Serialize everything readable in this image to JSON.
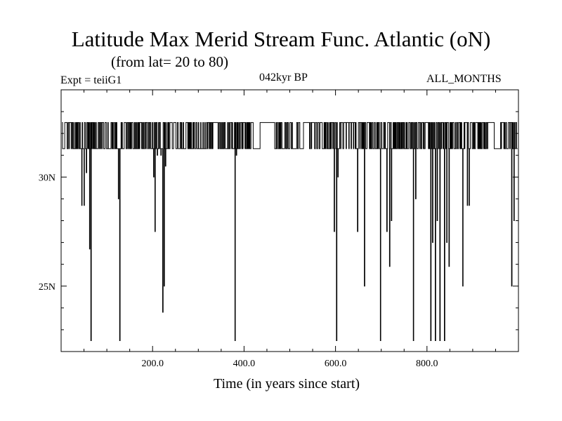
{
  "chart_data": {
    "type": "line",
    "title": "Latitude Max Merid Stream Func. Atlantic (oN)",
    "subtitle": "(from lat= 20 to 80)",
    "annotations": {
      "left": "Expt = teiiG1",
      "center": "042kyr BP",
      "right": "ALL_MONTHS"
    },
    "xlabel": "Time (in years since start)",
    "ylabel": "",
    "xlim": [
      0,
      1000
    ],
    "ylim": [
      22,
      34
    ],
    "x_ticks": [
      200,
      400,
      600,
      800
    ],
    "x_tick_labels": [
      "200.0",
      "400.0",
      "600.0",
      "800.0"
    ],
    "y_ticks": [
      25,
      30
    ],
    "y_tick_labels": [
      "25N",
      "30N"
    ],
    "grid": false,
    "legend": "none",
    "line_color": "#000000",
    "series": [
      {
        "levels": [
          32.5,
          31.3
        ],
        "baseline_range": [
          2,
          998
        ],
        "dips": [
          {
            "x": 45,
            "y": 28.7
          },
          {
            "x": 50,
            "y": 28.7
          },
          {
            "x": 55,
            "y": 30.2
          },
          {
            "x": 62,
            "y": 26.7
          },
          {
            "x": 65,
            "y": 22.5
          },
          {
            "x": 125,
            "y": 29.0
          },
          {
            "x": 128,
            "y": 22.5
          },
          {
            "x": 202,
            "y": 30.0
          },
          {
            "x": 205,
            "y": 27.5
          },
          {
            "x": 210,
            "y": 31.0
          },
          {
            "x": 218,
            "y": 31.0
          },
          {
            "x": 222,
            "y": 23.8
          },
          {
            "x": 225,
            "y": 25.0
          },
          {
            "x": 228,
            "y": 30.5
          },
          {
            "x": 380,
            "y": 22.5
          },
          {
            "x": 383,
            "y": 31.0
          },
          {
            "x": 597,
            "y": 27.5
          },
          {
            "x": 602,
            "y": 22.5
          },
          {
            "x": 605,
            "y": 30.0
          },
          {
            "x": 648,
            "y": 27.5
          },
          {
            "x": 663,
            "y": 25.0
          },
          {
            "x": 698,
            "y": 22.5
          },
          {
            "x": 712,
            "y": 27.5
          },
          {
            "x": 718,
            "y": 25.9
          },
          {
            "x": 722,
            "y": 28.0
          },
          {
            "x": 770,
            "y": 22.5
          },
          {
            "x": 775,
            "y": 29.0
          },
          {
            "x": 808,
            "y": 22.5
          },
          {
            "x": 812,
            "y": 27.0
          },
          {
            "x": 818,
            "y": 22.5
          },
          {
            "x": 822,
            "y": 28.0
          },
          {
            "x": 828,
            "y": 22.5
          },
          {
            "x": 838,
            "y": 22.5
          },
          {
            "x": 843,
            "y": 27.0
          },
          {
            "x": 848,
            "y": 25.9
          },
          {
            "x": 878,
            "y": 25.0
          },
          {
            "x": 888,
            "y": 28.7
          },
          {
            "x": 892,
            "y": 28.7
          },
          {
            "x": 985,
            "y": 25.0
          },
          {
            "x": 990,
            "y": 28.0
          }
        ]
      }
    ]
  }
}
